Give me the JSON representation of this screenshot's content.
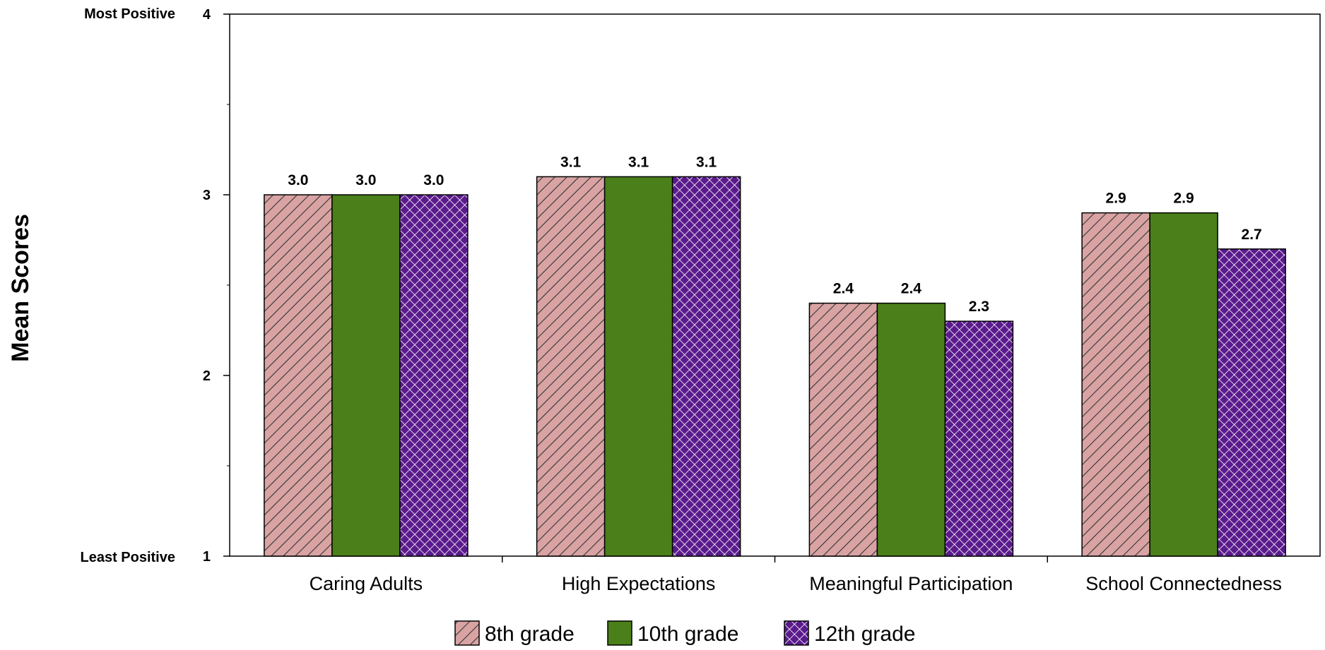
{
  "chart_data": {
    "type": "bar",
    "ylabel": "Mean Scores",
    "ylim": [
      1,
      4
    ],
    "yticks": [
      1,
      2,
      3,
      4
    ],
    "y_end_labels": {
      "top": "Most Positive",
      "bottom": "Least Positive"
    },
    "categories": [
      "Caring Adults",
      "High Expectations",
      "Meaningful Participation",
      "School Connectedness"
    ],
    "series": [
      {
        "name": "8th grade",
        "values": [
          3.0,
          3.1,
          2.4,
          2.9
        ],
        "labels": [
          "3.0",
          "3.1",
          "2.4",
          "2.9"
        ],
        "color": "#d9a3a3",
        "pattern": "diagonal-stripes"
      },
      {
        "name": "10th grade",
        "values": [
          3.0,
          3.1,
          2.4,
          2.9
        ],
        "labels": [
          "3.0",
          "3.1",
          "2.4",
          "2.9"
        ],
        "color": "#4a7f1a",
        "pattern": "solid"
      },
      {
        "name": "12th grade",
        "values": [
          3.0,
          3.1,
          2.3,
          2.7
        ],
        "labels": [
          "3.0",
          "3.1",
          "2.3",
          "2.7"
        ],
        "color": "#5a1a8c",
        "pattern": "crosshatch"
      }
    ],
    "legend_position": "bottom",
    "grid": false
  }
}
